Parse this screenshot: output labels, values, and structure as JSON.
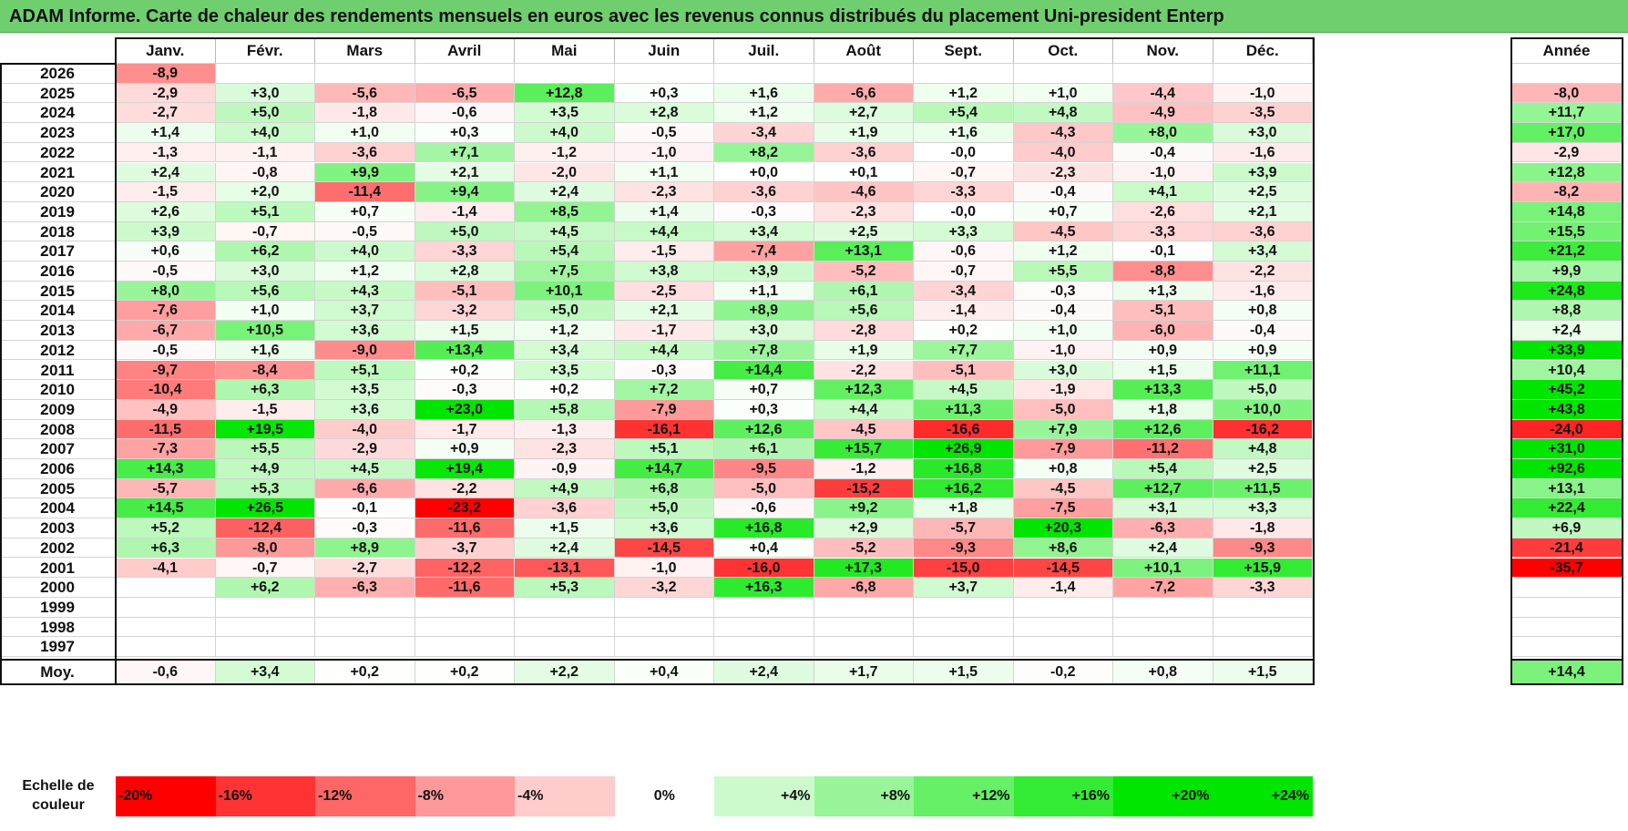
{
  "title": "ADAM Informe. Carte de chaleur des rendements mensuels en euros avec les revenus connus distribués du placement Uni-president Enterp",
  "chart_data": {
    "type": "heatmap",
    "title": "ADAM Informe. Carte de chaleur des rendements mensuels en euros avec les revenus connus distribués du placement Uni-president Enterp",
    "columns": [
      "Janv.",
      "Févr.",
      "Mars",
      "Avril",
      "Mai",
      "Juin",
      "Juil.",
      "Août",
      "Sept.",
      "Oct.",
      "Nov.",
      "Déc."
    ],
    "annual_header": "Année",
    "rows": [
      {
        "year": "2026",
        "values": [
          "-8,9",
          "",
          "",
          "",
          "",
          "",
          "",
          "",
          "",
          "",
          "",
          ""
        ],
        "annual": ""
      },
      {
        "year": "2025",
        "values": [
          "-2,9",
          "+3,0",
          "-5,6",
          "-6,5",
          "+12,8",
          "+0,3",
          "+1,6",
          "-6,6",
          "+1,2",
          "+1,0",
          "-4,4",
          "-1,0"
        ],
        "annual": "-8,0"
      },
      {
        "year": "2024",
        "values": [
          "-2,7",
          "+5,0",
          "-1,8",
          "-0,6",
          "+3,5",
          "+2,8",
          "+1,2",
          "+2,7",
          "+5,4",
          "+4,8",
          "-4,9",
          "-3,5"
        ],
        "annual": "+11,7"
      },
      {
        "year": "2023",
        "values": [
          "+1,4",
          "+4,0",
          "+1,0",
          "+0,3",
          "+4,0",
          "-0,5",
          "-3,4",
          "+1,9",
          "+1,6",
          "-4,3",
          "+8,0",
          "+3,0"
        ],
        "annual": "+17,0"
      },
      {
        "year": "2022",
        "values": [
          "-1,3",
          "-1,1",
          "-3,6",
          "+7,1",
          "-1,2",
          "-1,0",
          "+8,2",
          "-3,6",
          "-0,0",
          "-4,0",
          "-0,4",
          "-1,6"
        ],
        "annual": "-2,9"
      },
      {
        "year": "2021",
        "values": [
          "+2,4",
          "-0,8",
          "+9,9",
          "+2,1",
          "-2,0",
          "+1,1",
          "+0,0",
          "+0,1",
          "-0,7",
          "-2,3",
          "-1,0",
          "+3,9"
        ],
        "annual": "+12,8"
      },
      {
        "year": "2020",
        "values": [
          "-1,5",
          "+2,0",
          "-11,4",
          "+9,4",
          "+2,4",
          "-2,3",
          "-3,6",
          "-4,6",
          "-3,3",
          "-0,4",
          "+4,1",
          "+2,5"
        ],
        "annual": "-8,2"
      },
      {
        "year": "2019",
        "values": [
          "+2,6",
          "+5,1",
          "+0,7",
          "-1,4",
          "+8,5",
          "+1,4",
          "-0,3",
          "-2,3",
          "-0,0",
          "+0,7",
          "-2,6",
          "+2,1"
        ],
        "annual": "+14,8"
      },
      {
        "year": "2018",
        "values": [
          "+3,9",
          "-0,7",
          "-0,5",
          "+5,0",
          "+4,5",
          "+4,4",
          "+3,4",
          "+2,5",
          "+3,3",
          "-4,5",
          "-3,3",
          "-3,6"
        ],
        "annual": "+15,5"
      },
      {
        "year": "2017",
        "values": [
          "+0,6",
          "+6,2",
          "+4,0",
          "-3,3",
          "+5,4",
          "-1,5",
          "-7,4",
          "+13,1",
          "-0,6",
          "+1,2",
          "-0,1",
          "+3,4"
        ],
        "annual": "+21,2"
      },
      {
        "year": "2016",
        "values": [
          "-0,5",
          "+3,0",
          "+1,2",
          "+2,8",
          "+7,5",
          "+3,8",
          "+3,9",
          "-5,2",
          "-0,7",
          "+5,5",
          "-8,8",
          "-2,2"
        ],
        "annual": "+9,9"
      },
      {
        "year": "2015",
        "values": [
          "+8,0",
          "+5,6",
          "+4,3",
          "-5,1",
          "+10,1",
          "-2,5",
          "+1,1",
          "+6,1",
          "-3,4",
          "-0,3",
          "+1,3",
          "-1,6"
        ],
        "annual": "+24,8"
      },
      {
        "year": "2014",
        "values": [
          "-7,6",
          "+1,0",
          "+3,7",
          "-3,2",
          "+5,0",
          "+2,1",
          "+8,9",
          "+5,6",
          "-1,4",
          "-0,4",
          "-5,1",
          "+0,8"
        ],
        "annual": "+8,8"
      },
      {
        "year": "2013",
        "values": [
          "-6,7",
          "+10,5",
          "+3,6",
          "+1,5",
          "+1,2",
          "-1,7",
          "+3,0",
          "-2,8",
          "+0,2",
          "+1,0",
          "-6,0",
          "-0,4"
        ],
        "annual": "+2,4"
      },
      {
        "year": "2012",
        "values": [
          "-0,5",
          "+1,6",
          "-9,0",
          "+13,4",
          "+3,4",
          "+4,4",
          "+7,8",
          "+1,9",
          "+7,7",
          "-1,0",
          "+0,9",
          "+0,9"
        ],
        "annual": "+33,9"
      },
      {
        "year": "2011",
        "values": [
          "-9,7",
          "-8,4",
          "+5,1",
          "+0,2",
          "+3,5",
          "-0,3",
          "+14,4",
          "-2,2",
          "-5,1",
          "+3,0",
          "+1,5",
          "+11,1"
        ],
        "annual": "+10,4"
      },
      {
        "year": "2010",
        "values": [
          "-10,4",
          "+6,3",
          "+3,5",
          "-0,3",
          "+0,2",
          "+7,2",
          "+0,7",
          "+12,3",
          "+4,5",
          "-1,9",
          "+13,3",
          "+5,0"
        ],
        "annual": "+45,2"
      },
      {
        "year": "2009",
        "values": [
          "-4,9",
          "-1,5",
          "+3,6",
          "+23,0",
          "+5,8",
          "-7,9",
          "+0,3",
          "+4,4",
          "+11,3",
          "-5,0",
          "+1,8",
          "+10,0"
        ],
        "annual": "+43,8"
      },
      {
        "year": "2008",
        "values": [
          "-11,5",
          "+19,5",
          "-4,0",
          "-1,7",
          "-1,3",
          "-16,1",
          "+12,6",
          "-4,5",
          "-16,6",
          "+7,9",
          "+12,6",
          "-16,2"
        ],
        "annual": "-24,0"
      },
      {
        "year": "2007",
        "values": [
          "-7,3",
          "+5,5",
          "-2,9",
          "+0,9",
          "-2,3",
          "+5,1",
          "+6,1",
          "+15,7",
          "+26,9",
          "-7,9",
          "-11,2",
          "+4,8"
        ],
        "annual": "+31,0"
      },
      {
        "year": "2006",
        "values": [
          "+14,3",
          "+4,9",
          "+4,5",
          "+19,4",
          "-0,9",
          "+14,7",
          "-9,5",
          "-1,2",
          "+16,8",
          "+0,8",
          "+5,4",
          "+2,5"
        ],
        "annual": "+92,6"
      },
      {
        "year": "2005",
        "values": [
          "-5,7",
          "+5,3",
          "-6,6",
          "-2,2",
          "+4,9",
          "+6,8",
          "-5,0",
          "-15,2",
          "+16,2",
          "-4,5",
          "+12,7",
          "+11,5"
        ],
        "annual": "+13,1"
      },
      {
        "year": "2004",
        "values": [
          "+14,5",
          "+26,5",
          "-0,1",
          "-23,2",
          "-3,6",
          "+5,0",
          "-0,6",
          "+9,2",
          "+1,8",
          "-7,5",
          "+3,1",
          "+3,3"
        ],
        "annual": "+22,4"
      },
      {
        "year": "2003",
        "values": [
          "+5,2",
          "-12,4",
          "-0,3",
          "-11,6",
          "+1,5",
          "+3,6",
          "+16,8",
          "+2,9",
          "-5,7",
          "+20,3",
          "-6,3",
          "-1,8"
        ],
        "annual": "+6,9"
      },
      {
        "year": "2002",
        "values": [
          "+6,3",
          "-8,0",
          "+8,9",
          "-3,7",
          "+2,4",
          "-14,5",
          "+0,4",
          "-5,2",
          "-9,3",
          "+8,6",
          "+2,4",
          "-9,3"
        ],
        "annual": "-21,4"
      },
      {
        "year": "2001",
        "values": [
          "-4,1",
          "-0,7",
          "-2,7",
          "-12,2",
          "-13,1",
          "-1,0",
          "-16,0",
          "+17,3",
          "-15,0",
          "-14,5",
          "+10,1",
          "+15,9"
        ],
        "annual": "-35,7"
      },
      {
        "year": "2000",
        "values": [
          "",
          "+6,2",
          "-6,3",
          "-11,6",
          "+5,3",
          "-3,2",
          "+16,3",
          "-6,8",
          "+3,7",
          "-1,4",
          "-7,2",
          "-3,3"
        ],
        "annual": ""
      },
      {
        "year": "1999",
        "values": [
          "",
          "",
          "",
          "",
          "",
          "",
          "",
          "",
          "",
          "",
          "",
          ""
        ],
        "annual": ""
      },
      {
        "year": "1998",
        "values": [
          "",
          "",
          "",
          "",
          "",
          "",
          "",
          "",
          "",
          "",
          "",
          ""
        ],
        "annual": ""
      },
      {
        "year": "1997",
        "values": [
          "",
          "",
          "",
          "",
          "",
          "",
          "",
          "",
          "",
          "",
          "",
          ""
        ],
        "annual": ""
      }
    ],
    "average": {
      "label": "Moy.",
      "values": [
        "-0,6",
        "+3,4",
        "+0,2",
        "+0,2",
        "+2,2",
        "+0,4",
        "+2,4",
        "+1,7",
        "+1,5",
        "-0,2",
        "+0,8",
        "+1,5"
      ],
      "annual": "+14,4"
    },
    "scale": {
      "label": "Echelle de couleur",
      "items": [
        "-20%",
        "-16%",
        "-12%",
        "-8%",
        "-4%",
        "0%",
        "+4%",
        "+8%",
        "+12%",
        "+16%",
        "+20%",
        "+24%"
      ]
    },
    "colors": {
      "negative_max": "#ff0000",
      "positive_max": "#00e600",
      "neutral": "#ffffff",
      "title_bar": "#6fcf6f"
    }
  }
}
